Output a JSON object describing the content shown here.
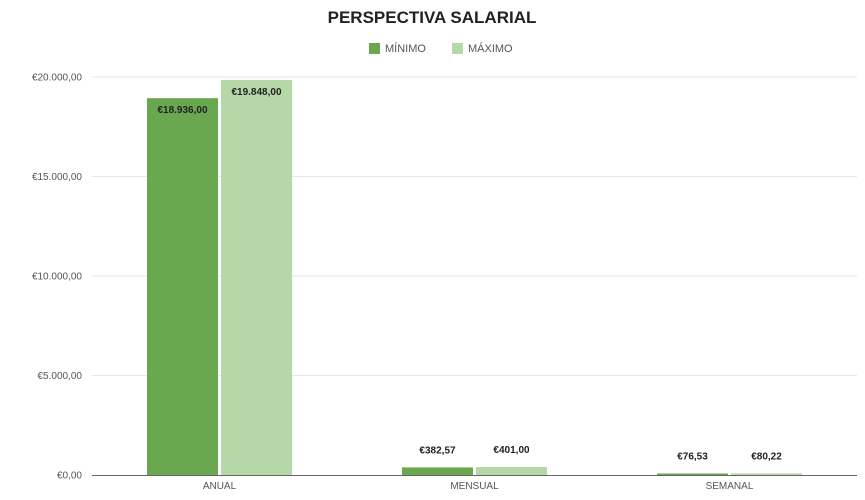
{
  "chart_data": {
    "type": "bar",
    "title": "PERSPECTIVA SALARIAL",
    "categories": [
      "ANUAL",
      "MENSUAL",
      "SEMANAL"
    ],
    "series": [
      {
        "name": "MÍNIMO",
        "color": "#6aa84f",
        "values": [
          18936.0,
          382.57,
          76.53
        ],
        "labels": [
          "€18.936,00",
          "€382,57",
          "€76,53"
        ]
      },
      {
        "name": "MÁXIMO",
        "color": "#b6d7a8",
        "values": [
          19848.0,
          401.0,
          80.22
        ],
        "labels": [
          "€19.848,00",
          "€401,00",
          "€80,22"
        ]
      }
    ],
    "ylim": [
      0,
      20000
    ],
    "yticks": [
      0,
      5000,
      10000,
      15000,
      20000
    ],
    "ytick_labels": [
      "€0,00",
      "€5.000,00",
      "€10.000,00",
      "€15.000,00",
      "€20.000,00"
    ],
    "grid": true,
    "legend_position": "top-center"
  }
}
